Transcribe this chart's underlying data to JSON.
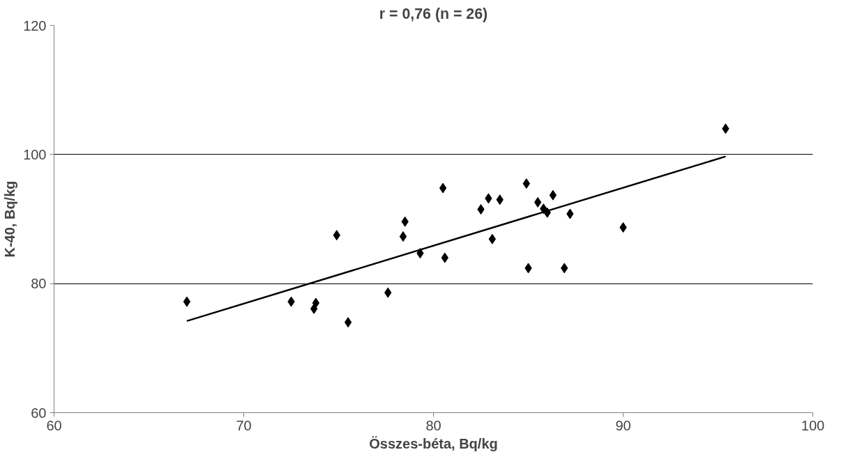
{
  "chart_data": {
    "type": "scatter",
    "title": "r = 0,76 (n = 26)",
    "xlabel": "Összes-béta, Bq/kg",
    "ylabel": "K-40, Bq/kg",
    "xlim": [
      60,
      100
    ],
    "xticks": [
      60,
      70,
      80,
      90,
      100
    ],
    "ylim": [
      60,
      120
    ],
    "yticks": [
      60,
      80,
      100,
      120
    ],
    "grid": "y",
    "series": [
      {
        "color": "#000000",
        "marker": "diamond",
        "x": [
          67.0,
          72.5,
          73.8,
          73.7,
          74.9,
          75.5,
          77.6,
          78.4,
          78.5,
          79.3,
          80.5,
          80.6,
          82.5,
          82.9,
          83.1,
          83.5,
          84.9,
          85.0,
          85.5,
          85.8,
          86.0,
          86.3,
          86.9,
          87.2,
          90.0,
          95.4
        ],
        "values": [
          77.2,
          77.2,
          77.0,
          76.1,
          87.5,
          74.0,
          78.6,
          87.3,
          89.6,
          84.7,
          94.8,
          84.0,
          91.5,
          93.2,
          86.9,
          93.0,
          95.5,
          82.4,
          92.6,
          91.6,
          91.0,
          93.7,
          82.4,
          90.8,
          88.7,
          104.0
        ]
      },
      {
        "type": "line",
        "color": "#000000",
        "marker": "none",
        "x": [
          67.0,
          95.4
        ],
        "values": [
          74.2,
          99.7
        ]
      }
    ]
  }
}
